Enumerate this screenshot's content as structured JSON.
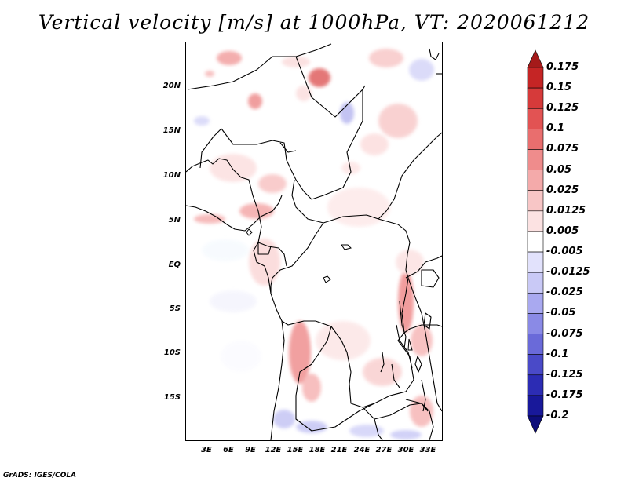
{
  "title": "Vertical velocity [m/s] at 1000hPa, VT: 2020061212",
  "footer": "GrADS: IGES/COLA",
  "lat_ticks": [
    "20N",
    "15N",
    "10N",
    "5N",
    "EQ",
    "5S",
    "10S",
    "15S"
  ],
  "lon_ticks": [
    "3E",
    "6E",
    "9E",
    "12E",
    "15E",
    "18E",
    "21E",
    "24E",
    "27E",
    "30E",
    "33E"
  ],
  "colorbar": {
    "labels": [
      "0.175",
      "0.15",
      "0.125",
      "0.1",
      "0.075",
      "0.05",
      "0.025",
      "0.0125",
      "0.005",
      "-0.005",
      "-0.0125",
      "-0.025",
      "-0.05",
      "-0.075",
      "-0.1",
      "-0.125",
      "-0.175",
      "-0.2"
    ],
    "colors": [
      "#a51a1a",
      "#c52525",
      "#d63a3a",
      "#e25353",
      "#e96e6e",
      "#ef8c8c",
      "#f4aaaa",
      "#f8c6c6",
      "#fce2e2",
      "#ffffff",
      "#e2e2fc",
      "#c9c9f6",
      "#a9a9f0",
      "#8a8ae6",
      "#6a6ad9",
      "#4a4ac8",
      "#2c2cb4",
      "#18189a",
      "#0d0d7a"
    ]
  }
}
